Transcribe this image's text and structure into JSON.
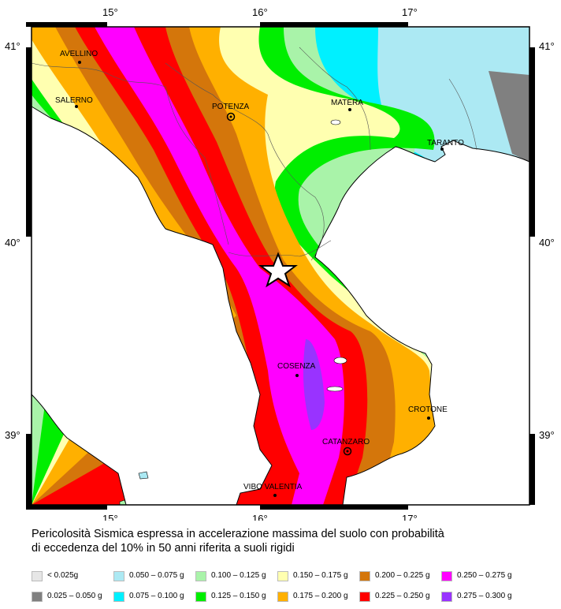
{
  "map": {
    "lon_ticks": [
      "15°",
      "16°",
      "17°"
    ],
    "lat_ticks": [
      "41°",
      "40°",
      "39°"
    ],
    "cities": [
      {
        "name": "AVELLINO",
        "marker": "dot"
      },
      {
        "name": "SALERNO",
        "marker": "dot"
      },
      {
        "name": "POTENZA",
        "marker": "ring"
      },
      {
        "name": "MATERA",
        "marker": "dot"
      },
      {
        "name": "TARANTO",
        "marker": "dot"
      },
      {
        "name": "COSENZA",
        "marker": "dot"
      },
      {
        "name": "CROTONE",
        "marker": "dot"
      },
      {
        "name": "CATANZARO",
        "marker": "ring"
      },
      {
        "name": "VIBO VALENTIA",
        "marker": "dot"
      }
    ],
    "epicenter_icon": "star-icon",
    "colors": {
      "c1": "#e6e6e6",
      "c2": "#808080",
      "c3": "#ace9f3",
      "c4": "#00f0ff",
      "c5": "#a9f3a9",
      "c6": "#00ee00",
      "c7": "#ffffb0",
      "c8": "#ffb000",
      "c9": "#d4760b",
      "c10": "#ff0000",
      "c11": "#ff00ff",
      "c12": "#9933ff",
      "sea": "#ffffff"
    }
  },
  "caption": {
    "line1": "Pericolosità Sismica espressa in accelerazione massima del suolo con probabilità",
    "line2": "di eccedenza del 10% in 50 anni riferita a suoli rigidi"
  },
  "legend": [
    {
      "label": "< 0.025g",
      "color": "#e6e6e6"
    },
    {
      "label": "0.025 – 0.050 g",
      "color": "#808080"
    },
    {
      "label": "0.050 – 0.075 g",
      "color": "#ace9f3"
    },
    {
      "label": "0.075 – 0.100 g",
      "color": "#00f0ff"
    },
    {
      "label": "0.100 – 0.125 g",
      "color": "#a9f3a9"
    },
    {
      "label": "0.125 – 0.150 g",
      "color": "#00ee00"
    },
    {
      "label": "0.150 – 0.175 g",
      "color": "#ffffb0"
    },
    {
      "label": "0.175 – 0.200 g",
      "color": "#ffb000"
    },
    {
      "label": "0.200 – 0.225 g",
      "color": "#d4760b"
    },
    {
      "label": "0.225 – 0.250 g",
      "color": "#ff0000"
    },
    {
      "label": "0.250 – 0.275 g",
      "color": "#ff00ff"
    },
    {
      "label": "0.275 – 0.300 g",
      "color": "#9933ff"
    }
  ]
}
